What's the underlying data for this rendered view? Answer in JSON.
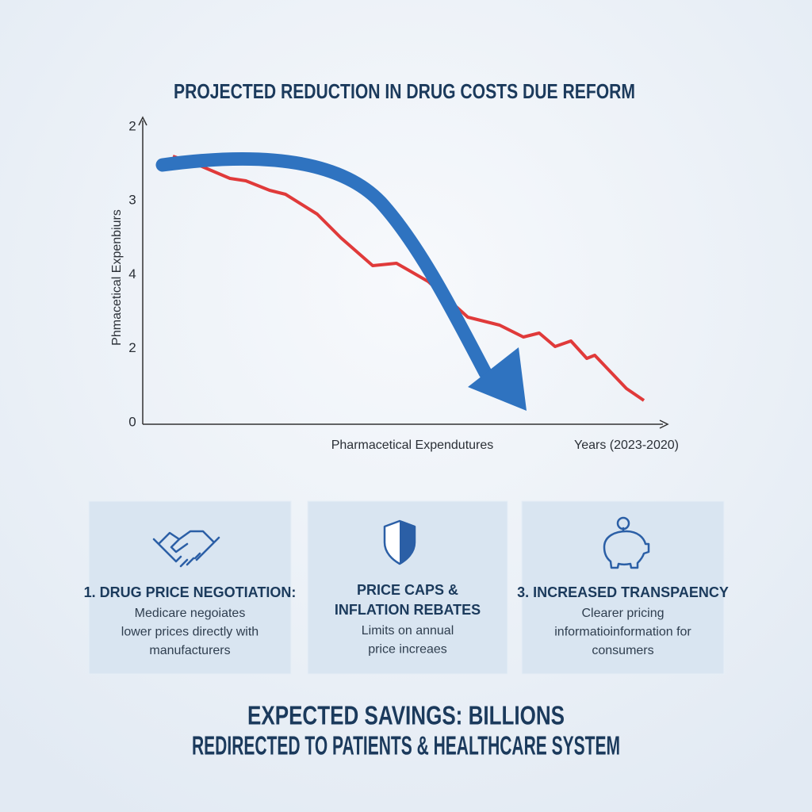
{
  "title": "PROJECTED REDUCTION IN DRUG COSTS DUE REFORM",
  "chart": {
    "y_axis_title": "Phmacetical Expenbiurs",
    "y_axis_labels": [
      "2",
      "3",
      "4",
      "2",
      "0"
    ],
    "x_axis_title": "Pharmacetical Expendutures",
    "x_axis_note": "Years (2023-2020)"
  },
  "cards": [
    {
      "heading": [
        "1. DRUG PRICE NEGOTIATION:"
      ],
      "body": [
        "Medicare negoiates",
        "lower prices directly with",
        "manufacturers"
      ]
    },
    {
      "heading": [
        "PRICE CAPS &",
        "INFLATION REBATES"
      ],
      "body": [
        "Limits on annual",
        "price increaes"
      ]
    },
    {
      "heading": [
        "3. INCREASED TRANSPAENCY"
      ],
      "body": [
        "Clearer pricing",
        "informatioinformation for",
        "consumers"
      ]
    }
  ],
  "footer": [
    "EXPECTED SAVINGS: BILLIONS",
    "REDIRECTED TO PATIENTS & HEALTHCARE SYSTEM"
  ]
}
